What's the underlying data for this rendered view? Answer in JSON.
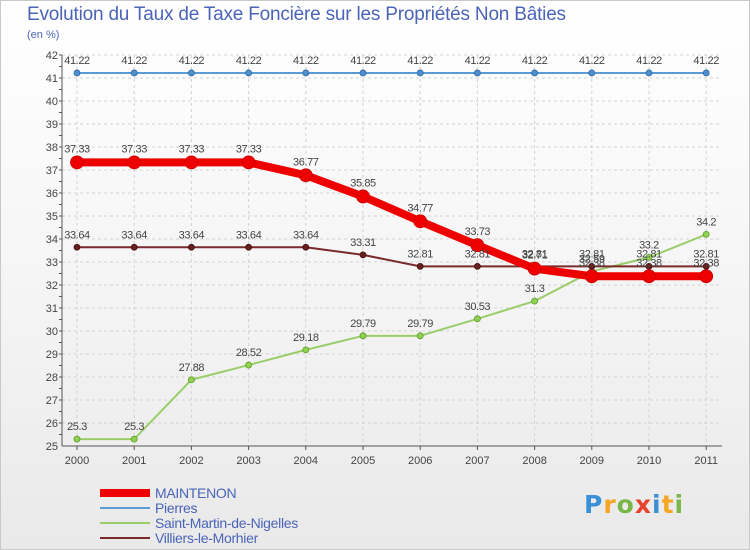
{
  "chart_data": {
    "type": "line",
    "title": "Evolution du Taux de Taxe Foncière sur les Propriétés Non Bâties",
    "subtitle": "(en %)",
    "x": [
      "2000",
      "2001",
      "2002",
      "2003",
      "2004",
      "2005",
      "2006",
      "2007",
      "2008",
      "2009",
      "2010",
      "2011"
    ],
    "ylim": [
      25,
      42
    ],
    "yticks": [
      "25",
      "26",
      "27",
      "28",
      "29",
      "30",
      "31",
      "32",
      "33",
      "34",
      "35",
      "36",
      "37",
      "38",
      "39",
      "40",
      "41",
      "42"
    ],
    "grid": true,
    "legend_position": "bottom-left",
    "series": [
      {
        "name": "MAINTENON",
        "color": "#ee0000",
        "values": [
          37.33,
          37.33,
          37.33,
          37.33,
          36.77,
          35.85,
          34.77,
          33.73,
          32.71,
          32.38,
          32.38,
          32.38
        ],
        "labels": [
          "37.33",
          "37.33",
          "37.33",
          "37.33",
          "36.77",
          "35.85",
          "34.77",
          "33.73",
          "32.71",
          "32.38",
          "32.38",
          "32.38"
        ]
      },
      {
        "name": "Pierres",
        "color": "#5b9bd5",
        "values": [
          41.22,
          41.22,
          41.22,
          41.22,
          41.22,
          41.22,
          41.22,
          41.22,
          41.22,
          41.22,
          41.22,
          41.22
        ],
        "labels": [
          "41.22",
          "41.22",
          "41.22",
          "41.22",
          "41.22",
          "41.22",
          "41.22",
          "41.22",
          "41.22",
          "41.22",
          "41.22",
          "41.22"
        ]
      },
      {
        "name": "Saint-Martin-de-Nigelles",
        "color": "#9acd6a",
        "values": [
          25.3,
          25.3,
          27.88,
          28.52,
          29.18,
          29.79,
          29.79,
          30.53,
          31.3,
          32.59,
          33.2,
          34.2
        ],
        "labels": [
          "25.3",
          "25.3",
          "27.88",
          "28.52",
          "29.18",
          "29.79",
          "29.79",
          "30.53",
          "31.3",
          "32.59",
          "33.2",
          "34.2"
        ]
      },
      {
        "name": "Villiers-le-Morhier",
        "color": "#7a2a2a",
        "values": [
          33.64,
          33.64,
          33.64,
          33.64,
          33.64,
          33.31,
          32.81,
          32.81,
          32.81,
          32.81,
          32.81,
          32.81
        ],
        "labels": [
          "33.64",
          "33.64",
          "33.64",
          "33.64",
          "33.64",
          "33.31",
          "32.81",
          "32.81",
          "32.81",
          "32.81",
          "32.81",
          "32.81"
        ]
      }
    ]
  },
  "logo": {
    "letters": [
      "P",
      "r",
      "o",
      "x",
      "i",
      "t",
      "i"
    ],
    "colors": [
      "#3a8fd6",
      "#f5a623",
      "#7ab648",
      "#e5432b",
      "#3a8fd6",
      "#f5a623",
      "#7ab648"
    ]
  }
}
